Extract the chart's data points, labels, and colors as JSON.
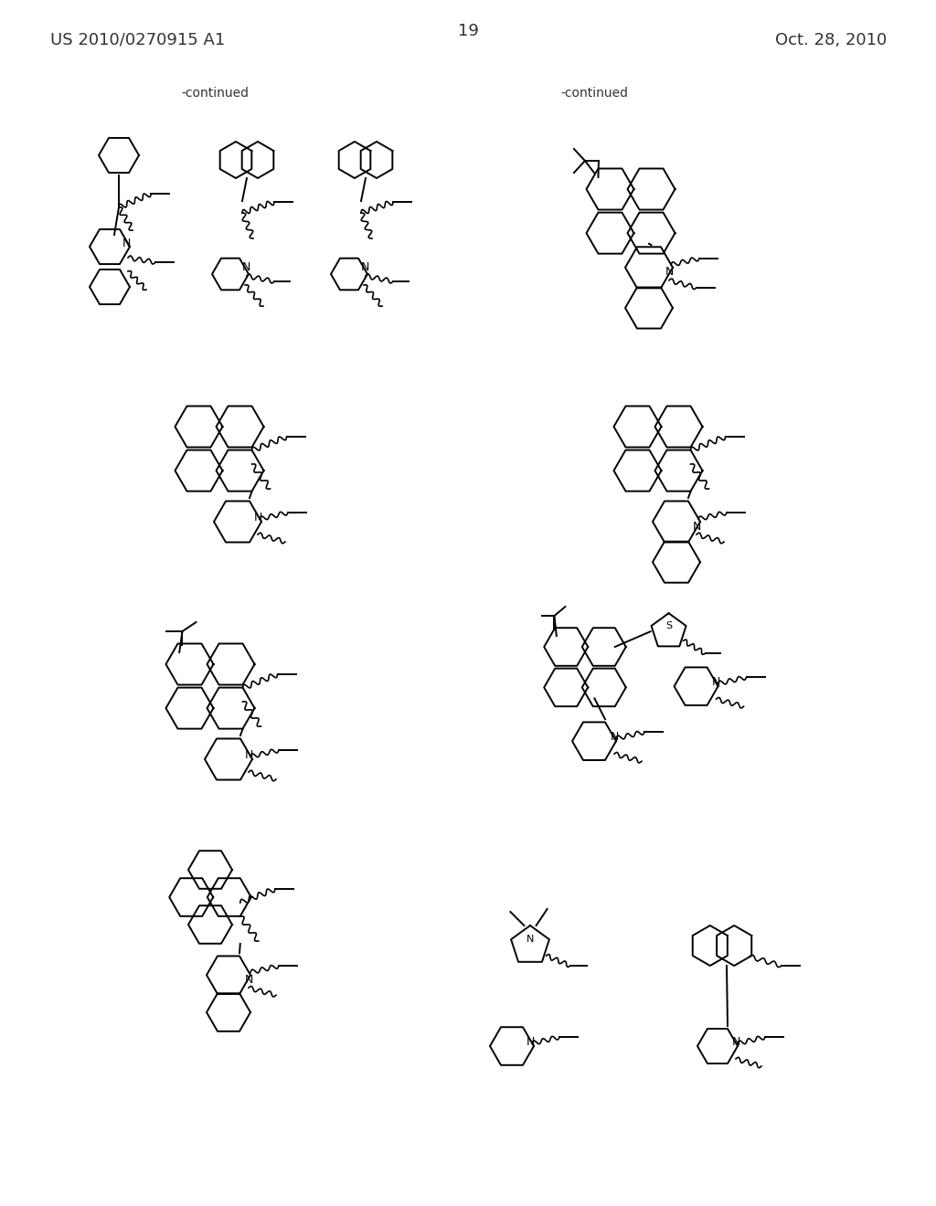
{
  "page_number": "19",
  "patent_number": "US 2010/0270915 A1",
  "patent_date": "Oct. 28, 2010",
  "background_color": "#ffffff",
  "line_color": "#000000",
  "continued_label": "-continued",
  "text_color": "#333333",
  "font_family": "serif"
}
